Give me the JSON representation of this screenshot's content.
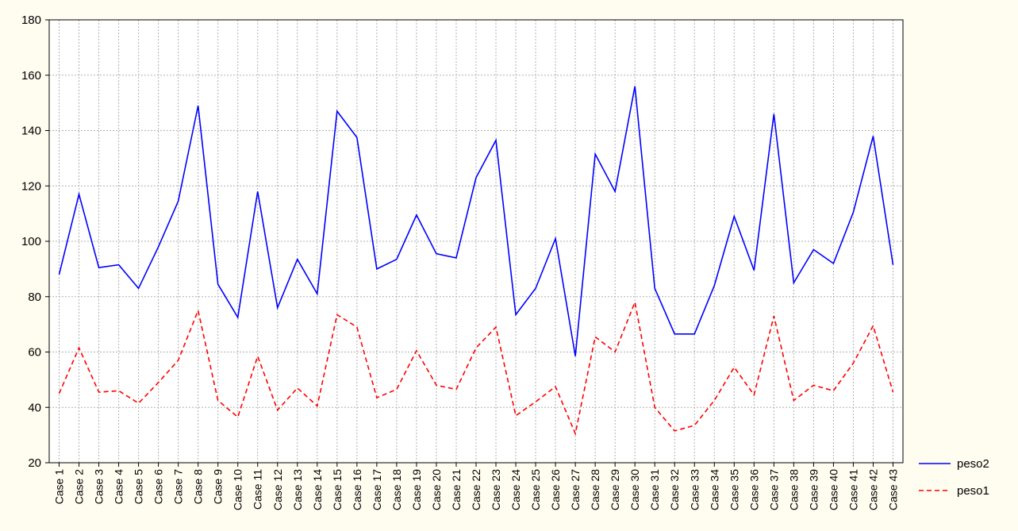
{
  "chart_data": {
    "type": "line",
    "categories": [
      "Case 1",
      "Case 2",
      "Case 3",
      "Case 4",
      "Case 5",
      "Case 6",
      "Case 7",
      "Case 8",
      "Case 9",
      "Case 10",
      "Case 11",
      "Case 12",
      "Case 13",
      "Case 14",
      "Case 15",
      "Case 16",
      "Case 17",
      "Case 18",
      "Case 19",
      "Case 20",
      "Case 21",
      "Case 22",
      "Case 23",
      "Case 24",
      "Case 25",
      "Case 26",
      "Case 27",
      "Case 28",
      "Case 29",
      "Case 30",
      "Case 31",
      "Case 32",
      "Case 33",
      "Case 34",
      "Case 35",
      "Case 36",
      "Case 37",
      "Case 38",
      "Case 39",
      "Case 40",
      "Case 41",
      "Case 42",
      "Case 43"
    ],
    "series": [
      {
        "name": "peso2",
        "color": "#0000ff",
        "line_style": "solid",
        "values": [
          88,
          117,
          90.5,
          91.5,
          83,
          98,
          114.5,
          149,
          84.5,
          72.5,
          118,
          76,
          93.5,
          81,
          147,
          137.5,
          90,
          93.5,
          109.5,
          95.5,
          94,
          123,
          136.5,
          73.5,
          83,
          101,
          58.5,
          131.5,
          118,
          156,
          83,
          66.5,
          66.5,
          84,
          109,
          89.5,
          146,
          85,
          97,
          92,
          110.5,
          138,
          91.5
        ]
      },
      {
        "name": "peso1",
        "color": "#ff0000",
        "line_style": "dashed",
        "values": [
          45,
          61.5,
          45.5,
          46,
          41.5,
          49,
          57,
          75,
          42.5,
          36.5,
          58.5,
          39,
          47,
          40.5,
          73.5,
          69,
          43.5,
          46.5,
          60.5,
          48,
          46.5,
          61.5,
          69,
          37,
          42,
          47.5,
          30.5,
          65.5,
          60,
          78,
          40,
          31.5,
          33.5,
          42.5,
          54.5,
          44.5,
          73,
          42.5,
          48,
          46,
          56,
          69.5,
          45.5
        ]
      }
    ],
    "ylim": [
      20,
      180
    ],
    "yticks": [
      20,
      40,
      60,
      80,
      100,
      120,
      140,
      160,
      180
    ],
    "grid": true,
    "legend": "right"
  }
}
